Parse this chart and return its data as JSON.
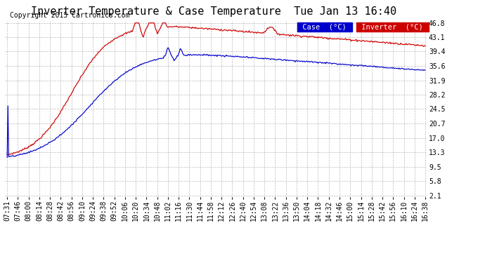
{
  "title": "Inverter Temperature & Case Temperature  Tue Jan 13 16:40",
  "copyright": "Copyright 2015 Cartronics.com",
  "yticks": [
    2.1,
    5.8,
    9.5,
    13.3,
    17.0,
    20.7,
    24.5,
    28.2,
    31.9,
    35.6,
    39.4,
    43.1,
    46.8
  ],
  "ymin": 2.1,
  "ymax": 46.8,
  "bg_color": "#ffffff",
  "plot_bg_color": "#ffffff",
  "grid_color": "#bbbbbb",
  "case_color": "#0000cc",
  "inverter_color": "#cc0000",
  "legend_case_bg": "#0000cc",
  "legend_inverter_bg": "#cc0000",
  "legend_text_color": "#ffffff",
  "title_fontsize": 11,
  "copyright_fontsize": 7,
  "tick_fontsize": 7,
  "xtick_labels": [
    "07:31",
    "07:46",
    "08:00",
    "08:14",
    "08:28",
    "08:42",
    "08:56",
    "09:10",
    "09:24",
    "09:38",
    "09:52",
    "10:06",
    "10:20",
    "10:34",
    "10:48",
    "11:02",
    "11:16",
    "11:30",
    "11:44",
    "11:58",
    "12:12",
    "12:26",
    "12:40",
    "12:54",
    "13:08",
    "13:22",
    "13:36",
    "13:50",
    "14:04",
    "14:18",
    "14:32",
    "14:46",
    "15:00",
    "15:14",
    "15:28",
    "15:42",
    "15:56",
    "16:10",
    "16:24",
    "16:38"
  ]
}
